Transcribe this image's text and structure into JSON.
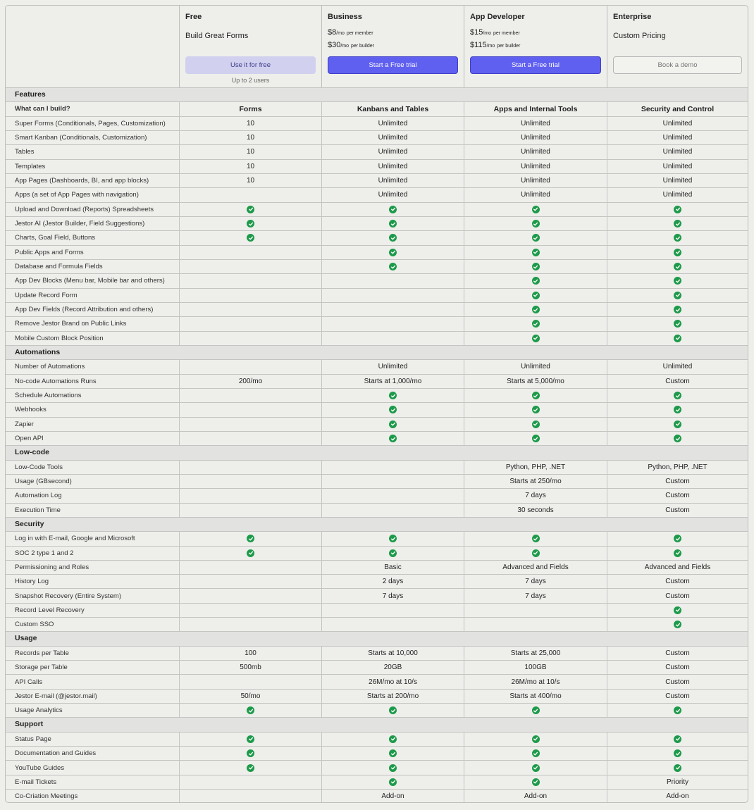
{
  "plans": [
    {
      "name": "Free",
      "tagline": "Build Great Forms",
      "button": "Use it for free",
      "note": "Up to 2 users",
      "style": "free"
    },
    {
      "name": "Business",
      "prices": [
        {
          "amount": "$8",
          "unit": "/mo",
          "per": "per member"
        },
        {
          "amount": "$30",
          "unit": "/mo",
          "per": "per builder"
        }
      ],
      "button": "Start a Free trial",
      "style": "trial"
    },
    {
      "name": "App Developer",
      "prices": [
        {
          "amount": "$15",
          "unit": "/mo",
          "per": "per member"
        },
        {
          "amount": "$115",
          "unit": "/mo",
          "per": "per builder"
        }
      ],
      "button": "Start a Free trial",
      "style": "trial"
    },
    {
      "name": "Enterprise",
      "tagline": "Custom Pricing",
      "button": "Book a demo",
      "style": "demo"
    }
  ],
  "colors": {
    "check": "#1d9a4a",
    "primary": "#5f5ff0"
  },
  "sections": [
    {
      "title": "Features",
      "header": {
        "label": "What can I build?",
        "cells": [
          "Forms",
          "Kanbans and Tables",
          "Apps and Internal Tools",
          "Security and Control"
        ]
      },
      "rows": [
        {
          "label": "Super Forms (Conditionals, Pages, Customization)",
          "cells": [
            "10",
            "Unlimited",
            "Unlimited",
            "Unlimited"
          ]
        },
        {
          "label": "Smart Kanban (Conditionals, Customization)",
          "cells": [
            "10",
            "Unlimited",
            "Unlimited",
            "Unlimited"
          ]
        },
        {
          "label": "Tables",
          "cells": [
            "10",
            "Unlimited",
            "Unlimited",
            "Unlimited"
          ]
        },
        {
          "label": "Templates",
          "cells": [
            "10",
            "Unlimited",
            "Unlimited",
            "Unlimited"
          ]
        },
        {
          "label": "App Pages (Dashboards, BI, and app blocks)",
          "cells": [
            "10",
            "Unlimited",
            "Unlimited",
            "Unlimited"
          ]
        },
        {
          "label": "Apps (a set of App Pages with navigation)",
          "cells": [
            "",
            "Unlimited",
            "Unlimited",
            "Unlimited"
          ]
        },
        {
          "label": "Upload and Download (Reports) Spreadsheets",
          "cells": [
            "check",
            "check",
            "check",
            "check"
          ]
        },
        {
          "label": "Jestor AI (Jestor Builder, Field Suggestions)",
          "cells": [
            "check",
            "check",
            "check",
            "check"
          ]
        },
        {
          "label": "Charts, Goal Field, Buttons",
          "cells": [
            "check",
            "check",
            "check",
            "check"
          ]
        },
        {
          "label": "Public Apps and Forms",
          "cells": [
            "",
            "check",
            "check",
            "check"
          ]
        },
        {
          "label": "Database and Formula Fields",
          "cells": [
            "",
            "check",
            "check",
            "check"
          ]
        },
        {
          "label": "App Dev Blocks (Menu bar, Mobile bar and others)",
          "cells": [
            "",
            "",
            "check",
            "check"
          ]
        },
        {
          "label": "Update Record Form",
          "cells": [
            "",
            "",
            "check",
            "check"
          ]
        },
        {
          "label": "App Dev Fields (Record Attribution and others)",
          "cells": [
            "",
            "",
            "check",
            "check"
          ]
        },
        {
          "label": "Remove Jestor Brand on Public Links",
          "cells": [
            "",
            "",
            "check",
            "check"
          ]
        },
        {
          "label": "Mobile Custom Block Position",
          "cells": [
            "",
            "",
            "check",
            "check"
          ]
        }
      ]
    },
    {
      "title": "Automations",
      "rows": [
        {
          "label": "Number of Automations",
          "cells": [
            "",
            "Unlimited",
            "Unlimited",
            "Unlimited"
          ]
        },
        {
          "label": "No-code Automations Runs",
          "cells": [
            "200/mo",
            "Starts at 1,000/mo",
            "Starts at 5,000/mo",
            "Custom"
          ]
        },
        {
          "label": "Schedule Automations",
          "cells": [
            "",
            "check",
            "check",
            "check"
          ]
        },
        {
          "label": "Webhooks",
          "cells": [
            "",
            "check",
            "check",
            "check"
          ]
        },
        {
          "label": "Zapier",
          "cells": [
            "",
            "check",
            "check",
            "check"
          ]
        },
        {
          "label": "Open API",
          "cells": [
            "",
            "check",
            "check",
            "check"
          ]
        }
      ]
    },
    {
      "title": "Low-code",
      "rows": [
        {
          "label": "Low-Code Tools",
          "cells": [
            "",
            "",
            "Python, PHP, .NET",
            "Python, PHP, .NET"
          ]
        },
        {
          "label": "Usage (GBsecond)",
          "cells": [
            "",
            "",
            "Starts at 250/mo",
            "Custom"
          ]
        },
        {
          "label": "Automation Log",
          "cells": [
            "",
            "",
            "7 days",
            "Custom"
          ]
        },
        {
          "label": "Execution Time",
          "cells": [
            "",
            "",
            "30 seconds",
            "Custom"
          ]
        }
      ]
    },
    {
      "title": "Security",
      "rows": [
        {
          "label": "Log in with E-mail, Google and Microsoft",
          "cells": [
            "check",
            "check",
            "check",
            "check"
          ]
        },
        {
          "label": "SOC 2 type 1 and 2",
          "cells": [
            "check",
            "check",
            "check",
            "check"
          ]
        },
        {
          "label": "Permissioning and Roles",
          "cells": [
            "",
            "Basic",
            "Advanced and Fields",
            "Advanced and Fields"
          ]
        },
        {
          "label": "History Log",
          "cells": [
            "",
            "2 days",
            "7 days",
            "Custom"
          ]
        },
        {
          "label": "Snapshot Recovery (Entire System)",
          "cells": [
            "",
            "7 days",
            "7 days",
            "Custom"
          ]
        },
        {
          "label": "Record Level Recovery",
          "cells": [
            "",
            "",
            "",
            "check"
          ]
        },
        {
          "label": "Custom SSO",
          "cells": [
            "",
            "",
            "",
            "check"
          ]
        }
      ]
    },
    {
      "title": "Usage",
      "rows": [
        {
          "label": "Records per Table",
          "cells": [
            "100",
            "Starts at 10,000",
            "Starts at 25,000",
            "Custom"
          ]
        },
        {
          "label": "Storage per Table",
          "cells": [
            "500mb",
            "20GB",
            "100GB",
            "Custom"
          ]
        },
        {
          "label": "API Calls",
          "cells": [
            "",
            "26M/mo at 10/s",
            "26M/mo at 10/s",
            "Custom"
          ]
        },
        {
          "label": "Jestor E-mail (@jestor.mail)",
          "cells": [
            "50/mo",
            "Starts at 200/mo",
            "Starts at 400/mo",
            "Custom"
          ]
        },
        {
          "label": "Usage Analytics",
          "cells": [
            "check",
            "check",
            "check",
            "check"
          ]
        }
      ]
    },
    {
      "title": "Support",
      "rows": [
        {
          "label": "Status Page",
          "cells": [
            "check",
            "check",
            "check",
            "check"
          ]
        },
        {
          "label": "Documentation and Guides",
          "cells": [
            "check",
            "check",
            "check",
            "check"
          ]
        },
        {
          "label": "YouTube Guides",
          "cells": [
            "check",
            "check",
            "check",
            "check"
          ]
        },
        {
          "label": "E-mail Tickets",
          "cells": [
            "",
            "check",
            "check",
            "Priority"
          ]
        },
        {
          "label": "Co-Criation Meetings",
          "cells": [
            "",
            "Add-on",
            "Add-on",
            "Add-on"
          ]
        }
      ]
    }
  ]
}
